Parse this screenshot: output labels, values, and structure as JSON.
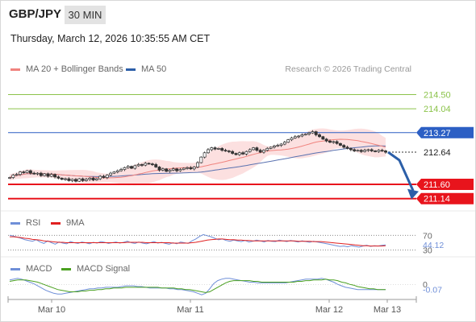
{
  "header": {
    "symbol": "GBP/JPY",
    "timeframe": "30 MIN",
    "datetime": "Thursday, March 12, 2026 10:35:55 AM CET"
  },
  "credit": "Research © 2026 Trading Central",
  "colors": {
    "ma20": "#f0837e",
    "bollinger": "#fbd6d6",
    "ma50": "#5a72b0",
    "resistance_green": "#8bc34a",
    "resistance_blue": "#2c5fc4",
    "support_red": "#e8141c",
    "price_tag": "#222222",
    "arrow": "#2c5fa8",
    "bull": "#ffffff",
    "bear": "#333333",
    "rsi": "#6f8fd8",
    "rsi_ma": "#e02020",
    "macd": "#6f8fd8",
    "macd_signal": "#4aa020"
  },
  "main_legend": [
    {
      "label": "MA 20 + Bollinger Bands",
      "color": "#f0837e"
    },
    {
      "label": "MA 50",
      "color": "#2c5fa8"
    }
  ],
  "rsi_legend": [
    {
      "label": "RSI",
      "color": "#6f8fd8"
    },
    {
      "label": "9MA",
      "color": "#e02020"
    }
  ],
  "macd_legend": [
    {
      "label": "MACD",
      "color": "#6f8fd8"
    },
    {
      "label": "MACD Signal",
      "color": "#4aa020"
    }
  ],
  "chart_data": [
    {
      "type": "candlestick",
      "symbol": "GBP/JPY",
      "timeframe": "30 MIN",
      "x_ticks": [
        "Mar 10",
        "Mar 11",
        "Mar 12",
        "Mar 13"
      ],
      "ylim": [
        210.95,
        214.85
      ],
      "price_levels": [
        {
          "value": 214.5,
          "label": "214.50",
          "kind": "resistance",
          "color": "green"
        },
        {
          "value": 214.04,
          "label": "214.04",
          "kind": "resistance",
          "color": "green"
        },
        {
          "value": 213.27,
          "label": "213.27",
          "kind": "pivot",
          "color": "blue"
        },
        {
          "value": 212.64,
          "label": "212.64",
          "kind": "last_price",
          "color": "black"
        },
        {
          "value": 211.6,
          "label": "211.60",
          "kind": "support",
          "color": "red"
        },
        {
          "value": 211.14,
          "label": "211.14",
          "kind": "support",
          "color": "red"
        }
      ],
      "forecast_arrow": {
        "from": 212.64,
        "to": 211.14,
        "direction": "down"
      },
      "close_series": [
        211.82,
        211.9,
        211.92,
        212.0,
        211.98,
        212.04,
        211.96,
        211.94,
        211.96,
        211.88,
        211.94,
        211.86,
        211.92,
        211.84,
        211.8,
        211.76,
        211.78,
        211.72,
        211.76,
        211.7,
        211.78,
        211.72,
        211.76,
        211.8,
        211.74,
        211.78,
        211.86,
        211.82,
        211.9,
        211.96,
        212.0,
        212.04,
        212.08,
        212.14,
        212.18,
        212.12,
        212.2,
        212.24,
        212.22,
        212.28,
        212.26,
        212.24,
        212.16,
        212.06,
        212.1,
        212.02,
        212.06,
        212.1,
        212.04,
        212.08,
        212.12,
        212.14,
        212.1,
        212.16,
        212.3,
        212.48,
        212.62,
        212.72,
        212.78,
        212.74,
        212.76,
        212.7,
        212.68,
        212.66,
        212.6,
        212.56,
        212.62,
        212.58,
        212.66,
        212.72,
        212.78,
        212.7,
        212.64,
        212.7,
        212.76,
        212.8,
        212.84,
        212.86,
        212.9,
        212.96,
        213.04,
        213.1,
        213.14,
        213.16,
        213.2,
        213.22,
        213.26,
        213.3,
        213.2,
        213.14,
        213.06,
        213.0,
        212.96,
        212.98,
        212.92,
        212.86,
        212.8,
        212.76,
        212.72,
        212.68,
        212.7,
        212.66,
        212.7,
        212.72,
        212.68,
        212.66,
        212.7,
        212.68,
        212.64
      ]
    },
    {
      "type": "line",
      "name_label": "RSI",
      "y_ticks": [
        "70",
        "44.12",
        "30"
      ],
      "last_value": 44.12,
      "ylim": [
        25,
        75
      ],
      "series": [
        {
          "name": "RSI",
          "values": [
            70,
            68,
            65,
            62,
            58,
            56,
            54,
            58,
            52,
            48,
            55,
            50,
            46,
            52,
            49,
            47,
            53,
            50,
            48,
            52,
            50,
            47,
            51,
            49,
            53,
            51,
            48,
            50,
            52,
            49,
            51,
            54,
            50,
            48,
            52,
            49,
            47,
            50,
            53,
            49,
            51,
            48,
            46,
            50,
            47,
            52,
            50,
            48,
            55,
            60,
            67,
            72,
            69,
            66,
            62,
            58,
            60,
            56,
            54,
            57,
            55,
            53,
            56,
            52,
            54,
            57,
            55,
            52,
            56,
            54,
            53,
            57,
            55,
            53,
            56,
            54,
            52,
            55,
            53,
            51,
            54,
            52,
            50,
            48,
            46,
            44,
            42,
            40,
            41,
            39,
            42,
            40,
            38,
            41,
            43,
            40,
            42,
            41,
            43,
            44
          ]
        },
        {
          "name": "9MA",
          "values": [
            66,
            66,
            65,
            64,
            62,
            61,
            59,
            58,
            57,
            55,
            54,
            53,
            52,
            51,
            51,
            50,
            50,
            50,
            50,
            50,
            50,
            50,
            50,
            50,
            50,
            50,
            50,
            50,
            50,
            50,
            50,
            51,
            51,
            51,
            51,
            51,
            50,
            50,
            50,
            50,
            50,
            50,
            50,
            49,
            49,
            49,
            49,
            49,
            50,
            51,
            53,
            55,
            57,
            58,
            59,
            60,
            60,
            59,
            58,
            58,
            57,
            57,
            56,
            56,
            55,
            55,
            55,
            55,
            55,
            55,
            55,
            55,
            55,
            55,
            55,
            55,
            54,
            54,
            54,
            54,
            53,
            53,
            53,
            52,
            51,
            50,
            49,
            48,
            47,
            46,
            45,
            44,
            43,
            42,
            42,
            41,
            41,
            41,
            41,
            42
          ]
        }
      ]
    },
    {
      "type": "line",
      "name_label": "MACD",
      "y_ticks": [
        "0",
        "-0.07"
      ],
      "last_value": -0.07,
      "series": [
        {
          "name": "MACD",
          "values": [
            0.06,
            0.07,
            0.08,
            0.07,
            0.05,
            0.03,
            0.01,
            -0.02,
            -0.05,
            -0.08,
            -0.1,
            -0.12,
            -0.13,
            -0.13,
            -0.12,
            -0.11,
            -0.1,
            -0.09,
            -0.08,
            -0.07,
            -0.06,
            -0.06,
            -0.05,
            -0.05,
            -0.04,
            -0.04,
            -0.04,
            -0.04,
            -0.03,
            -0.02,
            -0.02,
            -0.02,
            -0.03,
            -0.03,
            -0.04,
            -0.05,
            -0.05,
            -0.05,
            -0.05,
            -0.05,
            -0.06,
            -0.06,
            -0.07,
            -0.07,
            -0.08,
            -0.09,
            -0.1,
            -0.12,
            -0.14,
            -0.12,
            -0.06,
            0.01,
            0.05,
            0.07,
            0.08,
            0.08,
            0.07,
            0.06,
            0.05,
            0.04,
            0.03,
            0.03,
            0.02,
            0.02,
            0.02,
            0.02,
            0.02,
            0.02,
            0.02,
            0.02,
            0.03,
            0.04,
            0.05,
            0.06,
            0.07,
            0.07,
            0.07,
            0.07,
            0.08,
            0.07,
            0.05,
            0.03,
            0.0,
            -0.02,
            -0.04,
            -0.05,
            -0.06,
            -0.07,
            -0.07,
            -0.07,
            -0.07,
            -0.07,
            -0.07,
            -0.07,
            -0.07
          ]
        },
        {
          "name": "MACD Signal",
          "values": [
            0.04,
            0.05,
            0.06,
            0.06,
            0.06,
            0.05,
            0.04,
            0.03,
            0.01,
            -0.01,
            -0.03,
            -0.05,
            -0.07,
            -0.08,
            -0.09,
            -0.1,
            -0.1,
            -0.1,
            -0.09,
            -0.09,
            -0.08,
            -0.08,
            -0.07,
            -0.07,
            -0.06,
            -0.06,
            -0.05,
            -0.05,
            -0.05,
            -0.04,
            -0.04,
            -0.04,
            -0.04,
            -0.04,
            -0.04,
            -0.04,
            -0.04,
            -0.04,
            -0.05,
            -0.05,
            -0.05,
            -0.05,
            -0.06,
            -0.06,
            -0.07,
            -0.07,
            -0.08,
            -0.09,
            -0.1,
            -0.11,
            -0.1,
            -0.07,
            -0.04,
            -0.01,
            0.02,
            0.04,
            0.05,
            0.05,
            0.05,
            0.05,
            0.05,
            0.04,
            0.04,
            0.03,
            0.03,
            0.03,
            0.03,
            0.03,
            0.03,
            0.03,
            0.03,
            0.03,
            0.04,
            0.04,
            0.05,
            0.05,
            0.06,
            0.06,
            0.06,
            0.07,
            0.06,
            0.06,
            0.05,
            0.03,
            0.02,
            0.0,
            -0.01,
            -0.03,
            -0.04,
            -0.05,
            -0.06,
            -0.06,
            -0.07,
            -0.07,
            -0.07
          ]
        }
      ]
    }
  ]
}
